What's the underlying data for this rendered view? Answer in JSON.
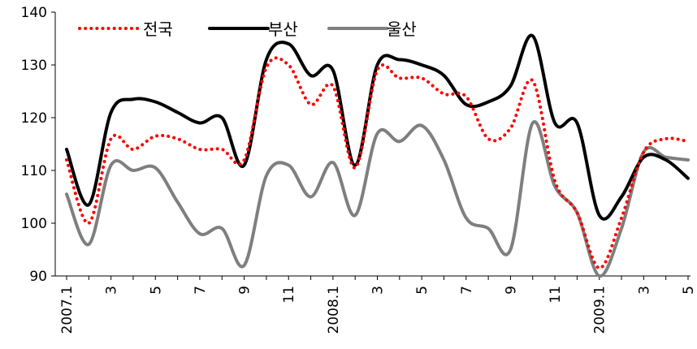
{
  "chart_data": {
    "type": "line",
    "x": [
      "2007.1",
      "2",
      "3",
      "4",
      "5",
      "6",
      "7",
      "8",
      "9",
      "10",
      "11",
      "12",
      "2008.1",
      "2",
      "3",
      "4",
      "5",
      "6",
      "7",
      "8",
      "9",
      "10",
      "11",
      "12",
      "2009.1",
      "2",
      "3",
      "4",
      "5"
    ],
    "x_tick_labels": [
      "2007.1",
      "3",
      "5",
      "7",
      "9",
      "11",
      "2008.1",
      "3",
      "5",
      "7",
      "9",
      "11",
      "2009.1",
      "3",
      "5"
    ],
    "ylim": [
      90,
      140
    ],
    "yticks": [
      90,
      100,
      110,
      120,
      130,
      140
    ],
    "legend_position": "top-left",
    "grid": false,
    "series": [
      {
        "name": "전국",
        "color": "#ff0000",
        "style": "dotted",
        "values": [
          112,
          100,
          116,
          114,
          116.5,
          116,
          114,
          114,
          112,
          129.5,
          130,
          122.5,
          126,
          110.5,
          129,
          127.5,
          127.5,
          124.5,
          124,
          116,
          118,
          127,
          108,
          102,
          91.5,
          101,
          113.5,
          116,
          115.5
        ]
      },
      {
        "name": "부산",
        "color": "#000000",
        "style": "solid",
        "values": [
          114,
          103.5,
          121,
          123.5,
          123,
          121,
          119,
          120,
          111,
          131,
          134,
          128,
          129,
          111,
          130,
          131,
          130,
          128,
          122.5,
          123,
          126,
          135.5,
          119,
          119,
          101.5,
          105,
          112.5,
          112,
          108.5
        ]
      },
      {
        "name": "울산",
        "color": "#7f7f7f",
        "style": "solid",
        "values": [
          105.5,
          96,
          111,
          110,
          110.5,
          104,
          98,
          99,
          92,
          109,
          111,
          105,
          111.5,
          101.5,
          117,
          115.5,
          118.5,
          112,
          101,
          99,
          95,
          119,
          107,
          102,
          90,
          99,
          113.5,
          112.5,
          112
        ]
      }
    ]
  }
}
